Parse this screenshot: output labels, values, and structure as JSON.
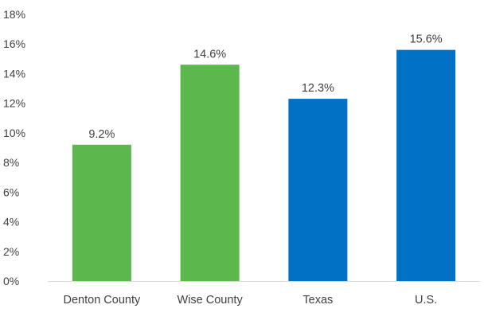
{
  "chart_data": {
    "type": "bar",
    "title": "",
    "xlabel": "",
    "ylabel": "",
    "categories": [
      "Denton County",
      "Wise County",
      "Texas",
      "U.S."
    ],
    "values": [
      9.2,
      14.6,
      12.3,
      15.6
    ],
    "value_labels": [
      "9.2%",
      "14.6%",
      "12.3%",
      "15.6%"
    ],
    "bar_colors": [
      "#5cb84c",
      "#5cb84c",
      "#0071c5",
      "#0071c5"
    ],
    "ylim": [
      0,
      18
    ],
    "y_ticks": [
      0,
      2,
      4,
      6,
      8,
      10,
      12,
      14,
      16,
      18
    ],
    "y_tick_labels": [
      "0%",
      "2%",
      "4%",
      "6%",
      "8%",
      "10%",
      "12%",
      "14%",
      "16%",
      "18%"
    ],
    "grid": false,
    "legend": "none",
    "axis_color": "#d9d9d9",
    "text_color": "#404040"
  }
}
